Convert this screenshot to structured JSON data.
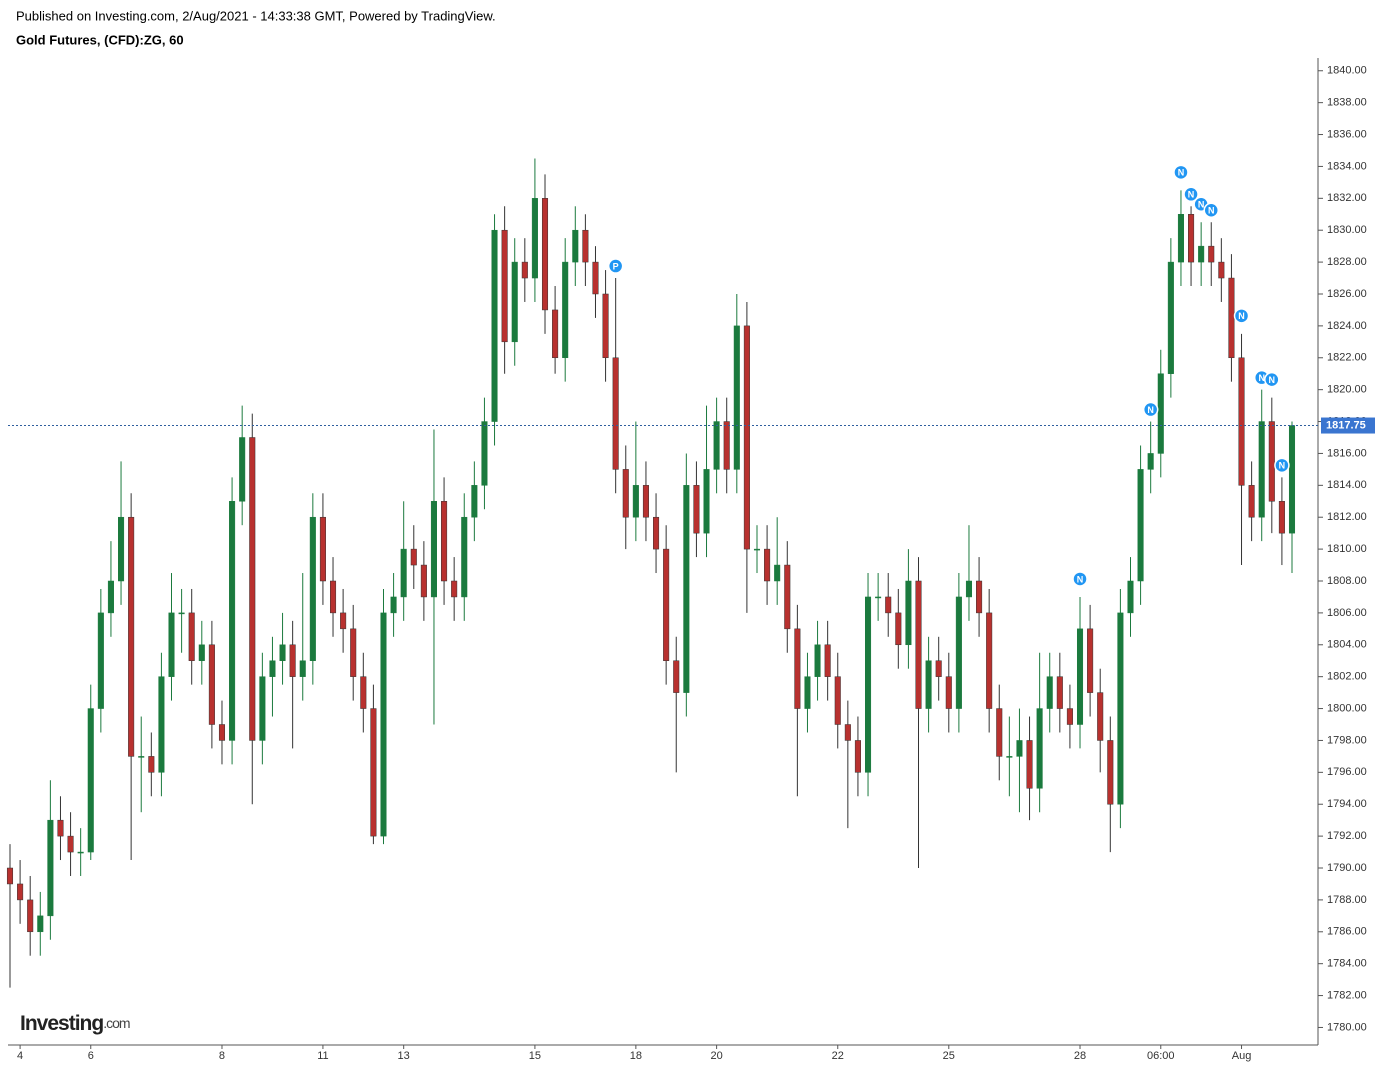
{
  "header": {
    "published": "Published on Investing.com, 2/Aug/2021 - 14:33:38 GMT, Powered by TradingView.",
    "symbol": "Gold Futures, (CFD):ZG, 60",
    "logo_main": "Investing",
    "logo_suffix": ".com"
  },
  "chart_data": {
    "type": "candlestick",
    "up_color": "#1b7a3e",
    "down_color": "#b8312f",
    "categories": [
      null,
      "4",
      null,
      null,
      null,
      null,
      null,
      null,
      "6",
      null,
      null,
      null,
      null,
      null,
      null,
      null,
      null,
      null,
      null,
      null,
      null,
      "8",
      null,
      null,
      null,
      null,
      null,
      null,
      null,
      null,
      null,
      "11",
      null,
      null,
      null,
      null,
      null,
      null,
      null,
      "13",
      null,
      null,
      null,
      null,
      null,
      null,
      null,
      null,
      null,
      null,
      null,
      null,
      "15",
      null,
      null,
      null,
      null,
      null,
      null,
      null,
      null,
      null,
      "18",
      null,
      null,
      null,
      null,
      null,
      null,
      null,
      "20",
      null,
      null,
      null,
      null,
      null,
      null,
      null,
      null,
      null,
      null,
      null,
      "22",
      null,
      null,
      null,
      null,
      null,
      null,
      null,
      null,
      null,
      null,
      "25",
      null,
      null,
      null,
      null,
      null,
      null,
      null,
      null,
      null,
      null,
      null,
      null,
      "28",
      null,
      null,
      null,
      null,
      null,
      null,
      null,
      "06:00",
      null,
      null,
      null,
      null,
      null,
      null,
      null,
      "Aug",
      null,
      null,
      null,
      null,
      null
    ],
    "open": [
      1790,
      1789,
      1788,
      1786,
      1787,
      1793,
      1792,
      1791,
      1791,
      1800,
      1806,
      1808,
      1812,
      1797,
      1797,
      1796,
      1802,
      1806,
      1806,
      1803,
      1804,
      1799,
      1798,
      1813,
      1817,
      1798,
      1802,
      1803,
      1804,
      1802,
      1803,
      1812,
      1808,
      1806,
      1805,
      1802,
      1800,
      1792,
      1806,
      1807,
      1810,
      1809,
      1807,
      1813,
      1808,
      1807,
      1812,
      1814,
      1818,
      1830,
      1823,
      1828,
      1827,
      1832,
      1825,
      1822,
      1828,
      1830,
      1828,
      1826,
      1822,
      1815,
      1812,
      1814,
      1812,
      1810,
      1803,
      1801,
      1814,
      1811,
      1815,
      1818,
      1815,
      1824,
      1810,
      1810,
      1808,
      1809,
      1805,
      1800,
      1802,
      1804,
      1802,
      1799,
      1798,
      1796,
      1807,
      1807,
      1806,
      1804,
      1808,
      1800,
      1803,
      1802,
      1800,
      1807,
      1808,
      1806,
      1800,
      1797,
      1797,
      1798,
      1795,
      1800,
      1802,
      1800,
      1799,
      1805,
      1801,
      1798,
      1794,
      1806,
      1808,
      1815,
      1816,
      1821,
      1828,
      1831,
      1828,
      1829,
      1828,
      1827,
      1822,
      1814,
      1812,
      1818,
      1813,
      1811
    ],
    "high": [
      1791.5,
      1790.5,
      1789.5,
      1788.5,
      1795.5,
      1794.5,
      1793.5,
      1792.5,
      1801.5,
      1807.5,
      1810.5,
      1815.5,
      1813.5,
      1799.5,
      1798.5,
      1803.5,
      1808.5,
      1807.5,
      1807.5,
      1805.5,
      1805.5,
      1800.5,
      1814.5,
      1819,
      1818.5,
      1803.5,
      1804.5,
      1806,
      1805.5,
      1808.5,
      1813.5,
      1813.5,
      1809.5,
      1807.5,
      1806.5,
      1803.5,
      1801.5,
      1807.5,
      1808.5,
      1813,
      1811.5,
      1810.5,
      1817.5,
      1814.5,
      1809.5,
      1813.5,
      1815.5,
      1819.5,
      1831,
      1831.5,
      1829.5,
      1829.5,
      1834.5,
      1833.5,
      1826.5,
      1829.5,
      1831.5,
      1831,
      1829,
      1827.5,
      1827,
      1816.5,
      1818,
      1815.5,
      1813.5,
      1811.5,
      1804.5,
      1816,
      1815.5,
      1819,
      1819.5,
      1819.5,
      1826,
      1825.5,
      1811.5,
      1811.5,
      1812,
      1810.5,
      1806.5,
      1803.5,
      1805.5,
      1805.5,
      1803.5,
      1800.5,
      1799.5,
      1808.5,
      1808.5,
      1808.5,
      1807.5,
      1810,
      1809.5,
      1804.5,
      1804.5,
      1803.5,
      1808.5,
      1811.5,
      1809.5,
      1807.5,
      1801.5,
      1799.5,
      1800,
      1799.5,
      1803.5,
      1803.5,
      1803.5,
      1801.5,
      1807,
      1806.5,
      1802.5,
      1799.5,
      1807.5,
      1809.5,
      1816.5,
      1818,
      1822.5,
      1829.5,
      1832.5,
      1831.5,
      1830.5,
      1830.5,
      1829.5,
      1828.5,
      1823.5,
      1815.5,
      1820,
      1819.5,
      1814.5,
      1818
    ],
    "low": [
      1782.5,
      1786.5,
      1784.5,
      1784.5,
      1785.5,
      1790.5,
      1789.5,
      1789.5,
      1790.5,
      1798.5,
      1804.5,
      1806.5,
      1790.5,
      1793.5,
      1794.5,
      1794.5,
      1800.5,
      1803.5,
      1801.5,
      1801.5,
      1797.5,
      1796.5,
      1796.5,
      1811.5,
      1794,
      1796.5,
      1799.5,
      1801.5,
      1797.5,
      1800.5,
      1801.5,
      1806.5,
      1804.5,
      1803.5,
      1800.5,
      1798.5,
      1791.5,
      1791.5,
      1804.5,
      1805.5,
      1807.5,
      1805.5,
      1799,
      1806.5,
      1805.5,
      1805.5,
      1810.5,
      1812.5,
      1816.5,
      1821,
      1821.5,
      1825.5,
      1825.5,
      1823.5,
      1821,
      1820.5,
      1826.5,
      1826.5,
      1824.5,
      1820.5,
      1813.5,
      1810,
      1810.5,
      1810.5,
      1808.5,
      1801.5,
      1796,
      1799.5,
      1809.5,
      1809.5,
      1813.5,
      1813.5,
      1813.5,
      1806,
      1808.5,
      1806.5,
      1806.5,
      1803.5,
      1794.5,
      1798.5,
      1800.5,
      1800.5,
      1797.5,
      1792.5,
      1794.5,
      1794.5,
      1805.5,
      1804.5,
      1802.5,
      1802.5,
      1790,
      1798.5,
      1800.5,
      1798.5,
      1798.5,
      1805.5,
      1804.5,
      1798.5,
      1795.5,
      1794.5,
      1793.5,
      1793,
      1793.5,
      1798.5,
      1798.5,
      1797.5,
      1797.5,
      1799.5,
      1796,
      1791,
      1792.5,
      1804.5,
      1806.5,
      1813.5,
      1814.5,
      1819.5,
      1826.5,
      1826.5,
      1826.5,
      1826.5,
      1825.5,
      1820.5,
      1809,
      1810.5,
      1810.5,
      1811,
      1809,
      1808.5
    ],
    "close": [
      1789,
      1788,
      1786,
      1787,
      1793,
      1792,
      1791,
      1791,
      1800,
      1806,
      1808,
      1812,
      1797,
      1797,
      1796,
      1802,
      1806,
      1806,
      1803,
      1804,
      1799,
      1798,
      1813,
      1817,
      1798,
      1802,
      1803,
      1804,
      1802,
      1803,
      1812,
      1808,
      1806,
      1805,
      1802,
      1800,
      1792,
      1806,
      1807,
      1810,
      1809,
      1807,
      1813,
      1808,
      1807,
      1812,
      1814,
      1818,
      1830,
      1823,
      1828,
      1827,
      1832,
      1825,
      1822,
      1828,
      1830,
      1828,
      1826,
      1822,
      1815,
      1812,
      1814,
      1812,
      1810,
      1803,
      1801,
      1814,
      1811,
      1815,
      1818,
      1815,
      1824,
      1810,
      1810,
      1808,
      1809,
      1805,
      1800,
      1802,
      1804,
      1802,
      1799,
      1798,
      1796,
      1807,
      1807,
      1806,
      1804,
      1808,
      1800,
      1803,
      1802,
      1800,
      1807,
      1808,
      1806,
      1800,
      1797,
      1797,
      1798,
      1795,
      1800,
      1802,
      1800,
      1799,
      1805,
      1801,
      1798,
      1794,
      1806,
      1808,
      1815,
      1816,
      1821,
      1828,
      1831,
      1828,
      1829,
      1828,
      1827,
      1822,
      1814,
      1812,
      1818,
      1813,
      1811,
      1817.75
    ],
    "ylim": [
      1778.9,
      1840.8
    ],
    "yticks": [
      {
        "value": 1780,
        "label": "1780.00"
      },
      {
        "value": 1782,
        "label": "1782.00"
      },
      {
        "value": 1784,
        "label": "1784.00"
      },
      {
        "value": 1786,
        "label": "1786.00"
      },
      {
        "value": 1788,
        "label": "1788.00"
      },
      {
        "value": 1790,
        "label": "1790.00"
      },
      {
        "value": 1792,
        "label": "1792.00"
      },
      {
        "value": 1794,
        "label": "1794.00"
      },
      {
        "value": 1796,
        "label": "1796.00"
      },
      {
        "value": 1798,
        "label": "1798.00"
      },
      {
        "value": 1800,
        "label": "1800.00"
      },
      {
        "value": 1802,
        "label": "1802.00"
      },
      {
        "value": 1804,
        "label": "1804.00"
      },
      {
        "value": 1806,
        "label": "1806.00"
      },
      {
        "value": 1808,
        "label": "1808.00"
      },
      {
        "value": 1810,
        "label": "1810.00"
      },
      {
        "value": 1812,
        "label": "1812.00"
      },
      {
        "value": 1814,
        "label": "1814.00"
      },
      {
        "value": 1816,
        "label": "1816.00"
      },
      {
        "value": 1818,
        "label": "1818.00"
      },
      {
        "value": 1820,
        "label": "1820.00"
      },
      {
        "value": 1822,
        "label": "1822.00"
      },
      {
        "value": 1824,
        "label": "1824.00"
      },
      {
        "value": 1826,
        "label": "1826.00"
      },
      {
        "value": 1828,
        "label": "1828.00"
      },
      {
        "value": 1830,
        "label": "1830.00"
      },
      {
        "value": 1832,
        "label": "1832.00"
      },
      {
        "value": 1834,
        "label": "1834.00"
      },
      {
        "value": 1836,
        "label": "1836.00"
      },
      {
        "value": 1838,
        "label": "1838.00"
      },
      {
        "value": 1840,
        "label": "1840.00"
      }
    ],
    "last_price": {
      "value": 1817.75,
      "label": "1817.75"
    },
    "event_color": "#2196f3",
    "events": [
      {
        "label": "P",
        "at": 60
      },
      {
        "label": "N",
        "at": 106
      },
      {
        "label": "N",
        "at": 113
      },
      {
        "label": "N",
        "at": 116
      },
      {
        "label": "N",
        "at": 117
      },
      {
        "label": "N",
        "at": 118
      },
      {
        "label": "N",
        "at": 119
      },
      {
        "label": "N",
        "at": 122
      },
      {
        "label": "N",
        "at": 124
      },
      {
        "label": "N",
        "at": 125
      },
      {
        "label": "N",
        "at": 126
      }
    ]
  }
}
